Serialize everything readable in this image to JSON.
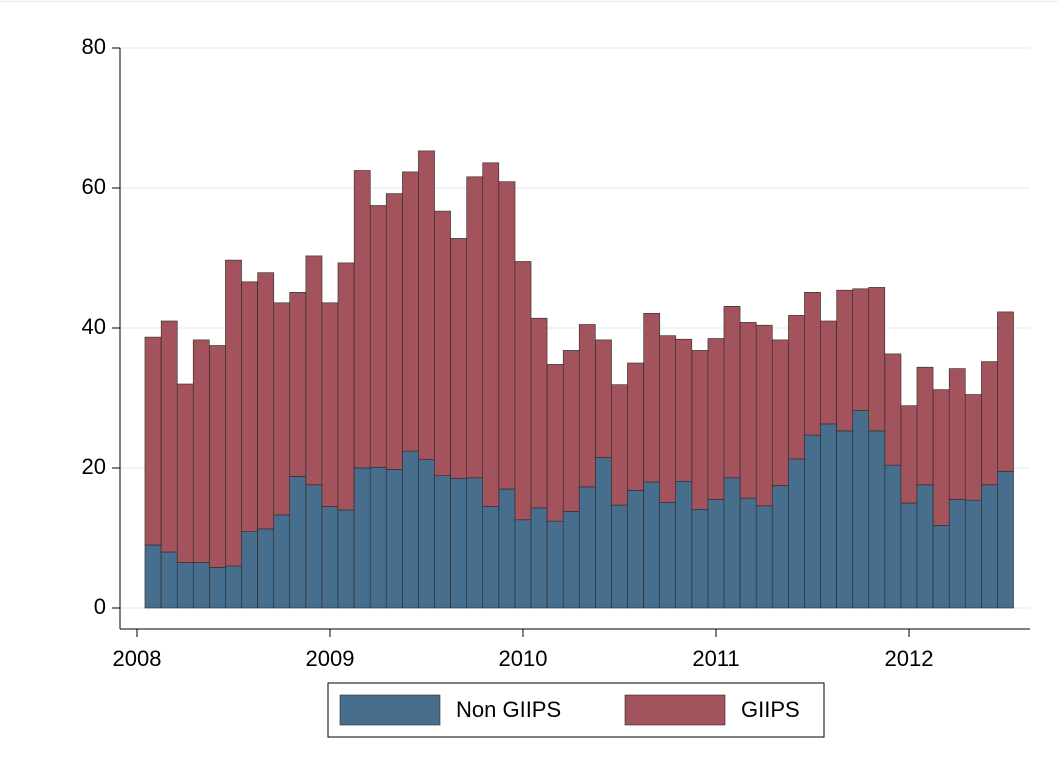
{
  "chart_data": {
    "type": "stacked_bar",
    "x": [
      2008.083,
      2008.167,
      2008.25,
      2008.333,
      2008.417,
      2008.5,
      2008.583,
      2008.667,
      2008.75,
      2008.833,
      2008.917,
      2009,
      2009.083,
      2009.167,
      2009.25,
      2009.333,
      2009.417,
      2009.5,
      2009.583,
      2009.667,
      2009.75,
      2009.833,
      2009.917,
      2010,
      2010.083,
      2010.167,
      2010.25,
      2010.333,
      2010.417,
      2010.5,
      2010.583,
      2010.667,
      2010.75,
      2010.833,
      2010.917,
      2011,
      2011.083,
      2011.167,
      2011.25,
      2011.333,
      2011.417,
      2011.5,
      2011.583,
      2011.667,
      2011.75,
      2011.833,
      2011.917,
      2012,
      2012.083,
      2012.167,
      2012.25,
      2012.333,
      2012.417,
      2012.5
    ],
    "series": [
      {
        "name": "Non GIIPS",
        "color": "#486e8e",
        "values": [
          9.0,
          8.0,
          6.5,
          6.5,
          5.8,
          6.0,
          10.9,
          11.3,
          13.3,
          18.8,
          17.6,
          14.5,
          14.0,
          20.0,
          20.1,
          19.8,
          22.4,
          21.2,
          18.9,
          18.5,
          18.6,
          14.5,
          17.0,
          12.6,
          14.3,
          12.4,
          13.8,
          17.3,
          21.5,
          14.7,
          16.8,
          18.0,
          15.1,
          18.1,
          14.1,
          15.5,
          18.6,
          15.7,
          14.6,
          17.5,
          21.3,
          24.7,
          26.3,
          25.3,
          28.2,
          25.3,
          20.4,
          15.0,
          17.6,
          11.8,
          15.5,
          15.4,
          17.6,
          19.5
        ]
      },
      {
        "name": "GIIPS",
        "color": "#a3535b",
        "values": [
          29.7,
          33.0,
          25.5,
          31.8,
          31.7,
          43.7,
          35.7,
          36.6,
          30.3,
          26.3,
          32.7,
          29.1,
          35.3,
          42.5,
          37.4,
          39.4,
          39.9,
          44.1,
          37.8,
          34.3,
          43.0,
          49.1,
          43.9,
          36.9,
          27.1,
          22.4,
          23.0,
          23.2,
          16.8,
          17.2,
          18.2,
          24.1,
          23.8,
          20.3,
          22.7,
          23.0,
          24.5,
          25.1,
          25.8,
          20.8,
          20.5,
          20.4,
          14.7,
          20.1,
          17.4,
          20.5,
          15.9,
          13.9,
          16.8,
          19.4,
          18.7,
          15.1,
          17.6,
          22.8
        ]
      }
    ],
    "xlim": [
      2007.912,
      2012.627
    ],
    "xticks": [
      2008,
      2009,
      2010,
      2011,
      2012
    ],
    "ylim": [
      -3,
      80
    ],
    "yticks": [
      0,
      20,
      40,
      60,
      80
    ],
    "grid": true,
    "legend": "bottom"
  }
}
